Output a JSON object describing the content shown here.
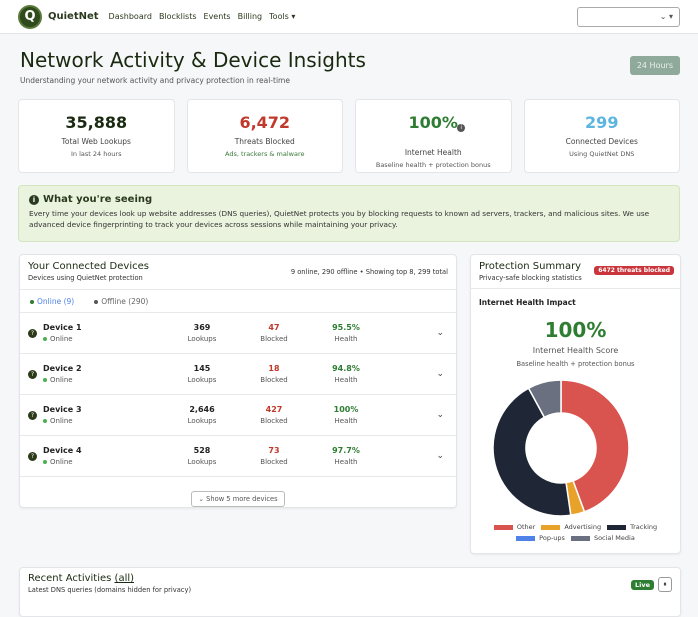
{
  "nav": {
    "brand": "QuietNet",
    "logo_letter": "Q",
    "links": [
      "Dashboard",
      "Blocklists",
      "Events",
      "Billing",
      "Tools ▾"
    ],
    "select_value": ""
  },
  "header": {
    "title": "Network Activity & Device Insights",
    "subtitle": "Understanding your network activity and privacy protection in real-time",
    "range_badge": "24 Hours"
  },
  "stats": [
    {
      "value": "35,888",
      "label": "Total Web Lookups",
      "sub": "In last 24 hours",
      "color": "#1a2a10",
      "sub_color": "#555555"
    },
    {
      "value": "6,472",
      "label": "Threats Blocked",
      "sub": "Ads, trackers & malware",
      "color": "#c0392b",
      "sub_color": "#3a7a3a"
    },
    {
      "value": "100%",
      "label": "Internet Health",
      "sub": "Baseline health + protection bonus",
      "color": "#2e7d32",
      "sub_color": "#555555"
    },
    {
      "value": "299",
      "label": "Connected Devices",
      "sub": "Using QuietNet DNS",
      "color": "#5bb5e0",
      "sub_color": "#555555"
    }
  ],
  "info": {
    "title": "What you're seeing",
    "text": "Every time your devices look up website addresses (DNS queries), QuietNet protects you by blocking requests to known ad servers, trackers, and malicious sites. We use advanced device fingerprinting to track your devices across sessions while maintaining your privacy."
  },
  "devices": {
    "title": "Your Connected Devices",
    "subtitle": "Devices using QuietNet protection",
    "summary": "9 online, 290 offline • Showing top 8, 299 total",
    "tabs": [
      "Online (9)",
      "Offline (290)"
    ],
    "labels": {
      "lookups": "Lookups",
      "blocked": "Blocked",
      "health": "Health"
    },
    "rows": [
      {
        "name": "Device 1",
        "status": "Online",
        "lookups": "369",
        "blocked": "47",
        "health": "95.5%"
      },
      {
        "name": "Device 2",
        "status": "Online",
        "lookups": "145",
        "blocked": "18",
        "health": "94.8%"
      },
      {
        "name": "Device 3",
        "status": "Online",
        "lookups": "2,646",
        "blocked": "427",
        "health": "100%"
      },
      {
        "name": "Device 4",
        "status": "Online",
        "lookups": "528",
        "blocked": "73",
        "health": "97.7%"
      }
    ],
    "more_button": "Show 5 more devices"
  },
  "protection": {
    "title": "Protection Summary",
    "subtitle": "Privacy-safe blocking statistics",
    "badge": "6472 threats blocked",
    "section": "Internet Health Impact",
    "score": "100%",
    "score_label": "Internet Health Score",
    "score_sub": "Baseline health + protection bonus"
  },
  "chart_data": {
    "type": "pie",
    "donut": true,
    "legend_position": "bottom",
    "categories": [
      "Other",
      "Advertising",
      "Tracking",
      "Pop-ups",
      "Social Media"
    ],
    "values": [
      44.4,
      3.3,
      44.4,
      0,
      7.9
    ],
    "colors": [
      "#d9534f",
      "#e8a22a",
      "#1f2636",
      "#4f82e8",
      "#6b7080"
    ]
  },
  "recent": {
    "title": "Recent Activities",
    "link": "(all)",
    "subtitle": "Latest DNS queries (domains hidden for privacy)",
    "live": "Live",
    "pause": "⏸"
  }
}
